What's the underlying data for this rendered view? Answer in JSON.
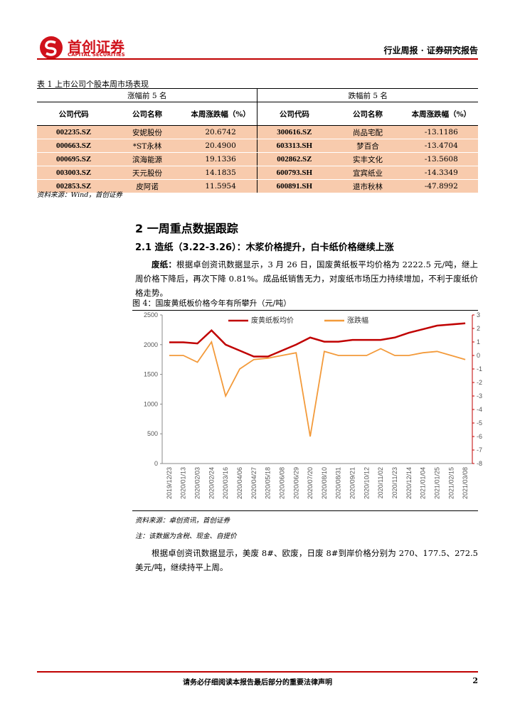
{
  "header": {
    "logo_name": "首创证券",
    "logo_sub": "CAPITAL SECURITIES",
    "report_type": "行业周报 · 证券研究报告"
  },
  "table": {
    "title": "表 1 上市公司个股本周市场表现",
    "groups": [
      "涨幅前 5 名",
      "跌幅前 5 名"
    ],
    "columns": [
      "公司代码",
      "公司名称",
      "本周涨跌幅（%）",
      "公司代码",
      "公司名称",
      "本周涨跌幅（%）"
    ],
    "rows": [
      [
        "002235.SZ",
        "安妮股份",
        "20.6742",
        "300616.SZ",
        "尚品宅配",
        "-13.1186"
      ],
      [
        "000663.SZ",
        "*ST永林",
        "20.4900",
        "603313.SH",
        "梦百合",
        "-13.4704"
      ],
      [
        "000695.SZ",
        "滨海能源",
        "19.1336",
        "002862.SZ",
        "实丰文化",
        "-13.5608"
      ],
      [
        "003003.SZ",
        "天元股份",
        "14.1835",
        "600793.SH",
        "宜宾纸业",
        "-14.3349"
      ],
      [
        "002853.SZ",
        "皮阿诺",
        "11.5954",
        "600891.SH",
        "退市秋林",
        "-47.8992"
      ]
    ],
    "source": "资料来源：Wind，首创证券"
  },
  "section": {
    "heading": "2 一周重点数据跟踪",
    "subheading": "2.1 造纸（3.22-3.26）：木浆价格提升，白卡纸价格继续上涨",
    "para1_lead": "废纸：",
    "para1": "根据卓创资讯数据显示，3 月 26 日，国废黄纸板平均价格为 2222.5 元/吨，继上周价格下降后，再次下降 0.81%。成品纸销售无力，对废纸市场压力持续增加，不利于废纸价格走势。",
    "chart_source": "资料来源：卓创资讯，首创证券",
    "chart_note": "注：该数据为含税、现金、自提价",
    "para2": "根据卓创资讯数据显示，美废 8#、欧废，日废 8#到岸价格分别为 270、177.5、272.5 美元/吨，继续持平上周。"
  },
  "chart_data": {
    "type": "line",
    "title": "图 4：国废黄纸板价格今年有所攀升（元/吨）",
    "categories": [
      "2019/12/23",
      "2020/01/13",
      "2020/02/03",
      "2020/02/24",
      "2020/03/16",
      "2020/04/06",
      "2020/04/27",
      "2020/05/18",
      "2020/06/08",
      "2020/06/29",
      "2020/07/20",
      "2020/08/10",
      "2020/08/31",
      "2020/09/21",
      "2020/10/12",
      "2020/11/02",
      "2020/11/23",
      "2020/12/14",
      "2021/01/04",
      "2021/01/25",
      "2021/02/15",
      "2021/03/08"
    ],
    "series": [
      {
        "name": "废黄纸板均价",
        "color": "#c00000",
        "values": [
          2040,
          2040,
          2020,
          2240,
          2000,
          1900,
          1800,
          1800,
          1900,
          2000,
          2120,
          2050,
          2050,
          2080,
          2080,
          2080,
          2120,
          2200,
          2260,
          2320,
          2340,
          2360
        ]
      },
      {
        "name": "涨跌幅",
        "color": "#f39a3a",
        "axis": "y2",
        "values": [
          0,
          0,
          -0.5,
          1,
          -3,
          -1,
          -0.3,
          -0.2,
          0,
          0.2,
          -6,
          0.3,
          0,
          0,
          0,
          0.5,
          0,
          0,
          0.2,
          0.3,
          0,
          -0.3
        ]
      }
    ],
    "ylim": [
      0,
      2500
    ],
    "yticks": [
      0,
      500,
      1000,
      1500,
      2000,
      2500
    ],
    "y2lim": [
      -8,
      3
    ],
    "y2ticks": [
      -8,
      -7,
      -6,
      -5,
      -4,
      -3,
      -2,
      -1,
      0,
      1,
      2,
      3
    ]
  },
  "footer": {
    "disclaimer": "请务必仔细阅读本报告最后部分的重要法律声明",
    "page": "2"
  }
}
